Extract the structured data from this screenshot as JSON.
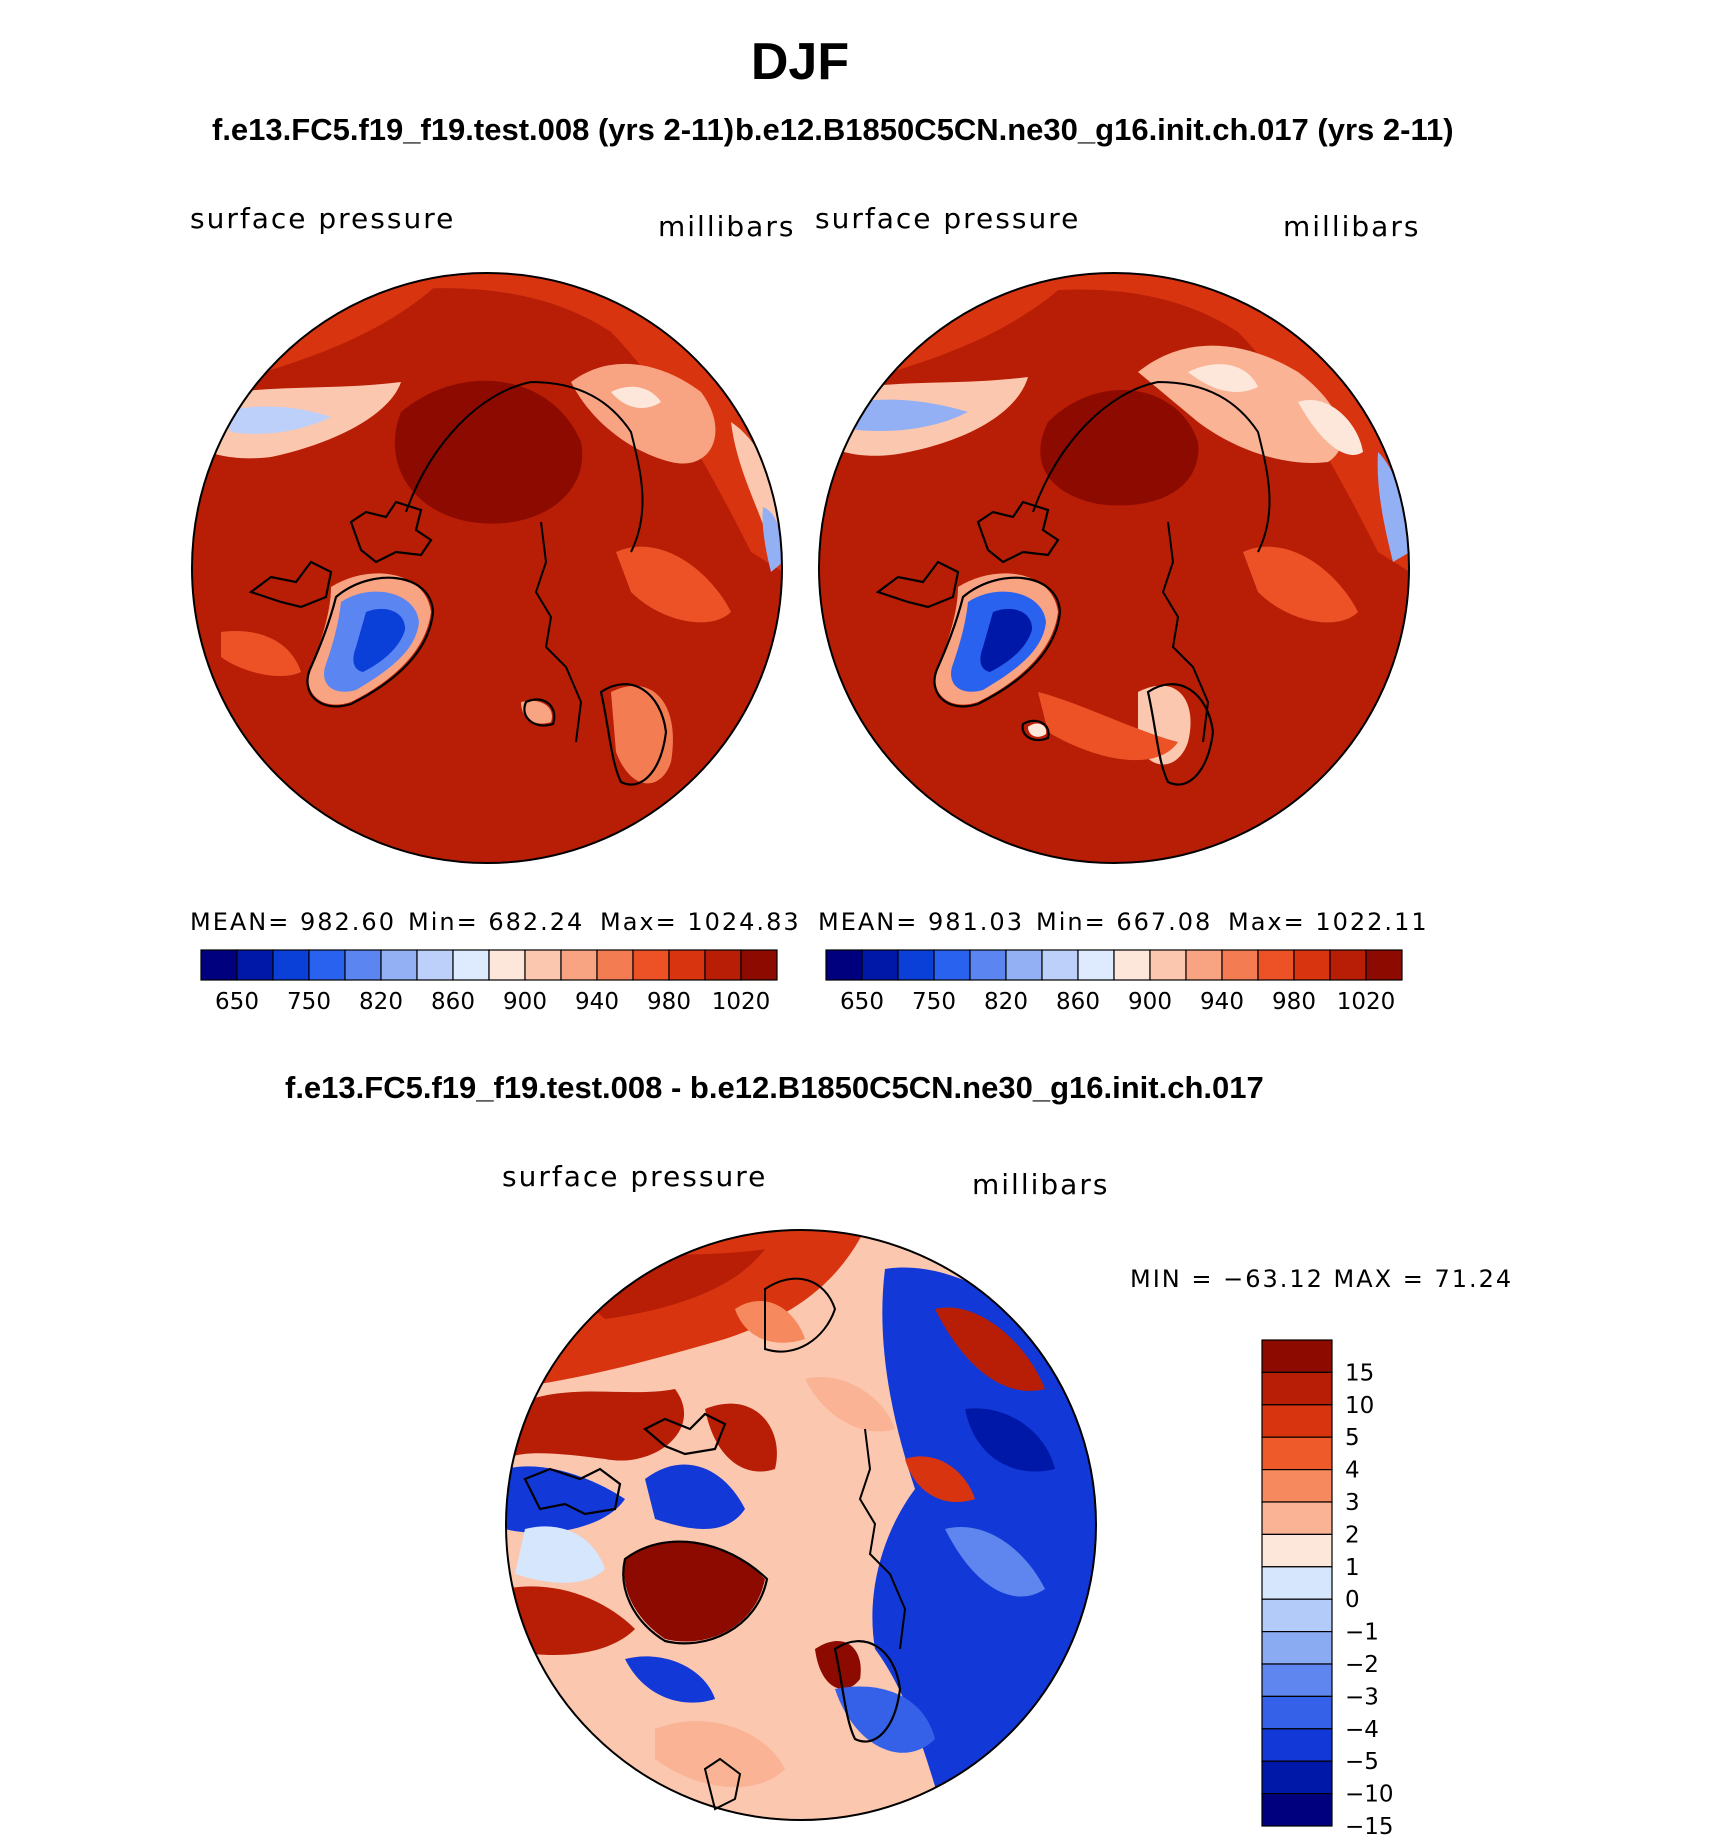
{
  "page": {
    "title": "DJF"
  },
  "panels": [
    {
      "case": "f.e13.FC5.f19_f19.test.008 (yrs 2-11)",
      "variable": "surface pressure",
      "units": "millibars",
      "stats": {
        "mean_text": "MEAN= 982.60",
        "min_text": "Min= 682.24",
        "max_text": "Max= 1024.83",
        "mean": 982.6,
        "min": 682.24,
        "max": 1024.83
      }
    },
    {
      "case": "b.e12.B1850C5CN.ne30_g16.init.ch.017 (yrs 2-11)",
      "variable": "surface pressure",
      "units": "millibars",
      "stats": {
        "mean_text": "MEAN= 981.03",
        "min_text": "Min= 667.08",
        "max_text": "Max= 1022.11",
        "mean": 981.03,
        "min": 667.08,
        "max": 1022.11
      }
    }
  ],
  "field_colorbar": {
    "colors": [
      "#00007f",
      "#0018a8",
      "#0a3fd8",
      "#2a62f0",
      "#5b86f2",
      "#93b0f5",
      "#bcd0fa",
      "#deeafd",
      "#fde7da",
      "#fcc7af",
      "#f8a382",
      "#f47c53",
      "#ec5226",
      "#d93410",
      "#b81e05",
      "#8c0a00"
    ],
    "tick_labels": [
      "650",
      "750",
      "820",
      "860",
      "900",
      "940",
      "980",
      "1020"
    ]
  },
  "difference": {
    "title": "f.e13.FC5.f19_f19.test.008 - b.e12.B1850C5CN.ne30_g16.init.ch.017",
    "variable": "surface pressure",
    "units": "millibars",
    "minmax_text": "MIN = −63.12 MAX =   71.24",
    "min": -63.12,
    "max": 71.24,
    "colorbar": {
      "colors": [
        "#8c0a00",
        "#b81e05",
        "#d93410",
        "#ef5a2a",
        "#f6895d",
        "#fab394",
        "#fde7da",
        "#d6e6fc",
        "#b2cbf8",
        "#8aaaf2",
        "#5f86ee",
        "#3561e8",
        "#1238d8",
        "#0018a8",
        "#00007f"
      ],
      "tick_labels": [
        "15",
        "10",
        "5",
        "4",
        "3",
        "2",
        "1",
        "0",
        "−1",
        "−2",
        "−3",
        "−4",
        "−5",
        "−10",
        "−15"
      ]
    }
  }
}
